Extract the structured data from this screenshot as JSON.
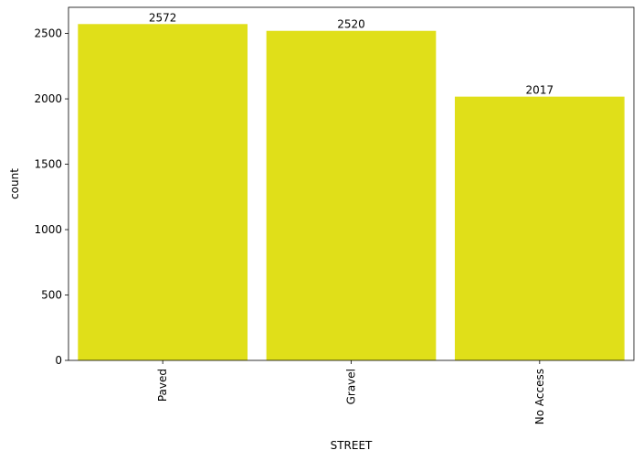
{
  "chart_data": {
    "type": "bar",
    "categories": [
      "Paved",
      "Gravel",
      "No Access"
    ],
    "values": [
      2572,
      2520,
      2017
    ],
    "data_labels": [
      "2572",
      "2520",
      "2017"
    ],
    "xlabel": "STREET",
    "ylabel": "count",
    "ylim": [
      0,
      2700
    ],
    "yticks": [
      0,
      500,
      1000,
      1500,
      2000,
      2500
    ],
    "ytick_labels": [
      "0",
      "500",
      "1000",
      "1500",
      "2000",
      "2500"
    ],
    "grid": false,
    "x_tick_rotation": "vertical",
    "bar_color": "#e0df19",
    "axis_color": "#000000"
  }
}
